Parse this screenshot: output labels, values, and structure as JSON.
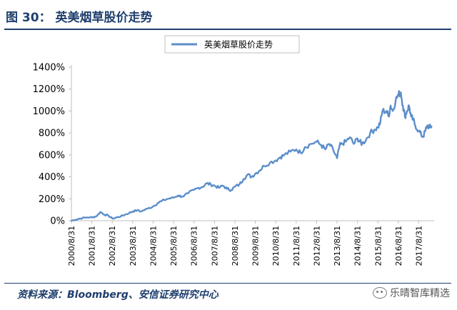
{
  "figure_title": "图 30： 英美烟草股价走势",
  "source": "资料来源：Bloomberg、安信证券研究中心",
  "watermark": "乐晴智库精选",
  "colors": {
    "line": "#5b8ecb",
    "title": "#1f3f6e",
    "axis": "#bfbfbf"
  },
  "chart_data": {
    "type": "line",
    "title": "",
    "xlabel": "",
    "ylabel": "",
    "legend": {
      "position": "top-center"
    },
    "grid": false,
    "ylim": [
      0,
      1400
    ],
    "y_ticks": [
      0,
      200,
      400,
      600,
      800,
      1000,
      1200,
      1400
    ],
    "y_tick_labels": [
      "0%",
      "200%",
      "400%",
      "600%",
      "800%",
      "1000%",
      "1200%",
      "1400%"
    ],
    "x_ticks": [
      "2000/8/31",
      "2001/8/31",
      "2002/8/31",
      "2003/8/31",
      "2004/8/31",
      "2005/8/31",
      "2006/8/31",
      "2007/8/31",
      "2008/8/31",
      "2009/8/31",
      "2010/8/31",
      "2011/8/31",
      "2012/8/31",
      "2013/8/31",
      "2014/8/31",
      "2015/8/31",
      "2016/8/31",
      "2017/8/31"
    ],
    "series": [
      {
        "name": "英美烟草股价走势",
        "x": [
          2000.58,
          2000.8,
          2001.0,
          2001.3,
          2001.58,
          2001.8,
          2002.0,
          2002.2,
          2002.4,
          2002.58,
          2002.8,
          2003.0,
          2003.2,
          2003.4,
          2003.58,
          2003.8,
          2004.0,
          2004.3,
          2004.58,
          2004.8,
          2005.0,
          2005.3,
          2005.58,
          2005.8,
          2006.0,
          2006.3,
          2006.58,
          2006.8,
          2007.0,
          2007.2,
          2007.4,
          2007.58,
          2007.8,
          2008.0,
          2008.2,
          2008.4,
          2008.58,
          2008.8,
          2009.0,
          2009.2,
          2009.4,
          2009.58,
          2009.8,
          2010.0,
          2010.3,
          2010.58,
          2010.8,
          2011.0,
          2011.3,
          2011.58,
          2011.8,
          2012.0,
          2012.3,
          2012.58,
          2012.8,
          2013.0,
          2013.2,
          2013.4,
          2013.58,
          2013.7,
          2013.8,
          2014.0,
          2014.2,
          2014.4,
          2014.58,
          2014.7,
          2014.8,
          2015.0,
          2015.2,
          2015.4,
          2015.58,
          2015.7,
          2015.8,
          2016.0,
          2016.1,
          2016.2,
          2016.3,
          2016.45,
          2016.58,
          2016.7,
          2016.8,
          2016.9,
          2017.0,
          2017.1,
          2017.2,
          2017.3,
          2017.4,
          2017.58,
          2017.7,
          2017.8,
          2017.9,
          2018.0,
          2018.1,
          2018.2
        ],
        "values": [
          0,
          10,
          20,
          30,
          30,
          40,
          80,
          55,
          45,
          20,
          30,
          40,
          55,
          70,
          85,
          95,
          85,
          110,
          130,
          160,
          180,
          200,
          210,
          230,
          220,
          250,
          280,
          300,
          310,
          340,
          330,
          320,
          300,
          320,
          290,
          280,
          310,
          330,
          380,
          420,
          400,
          430,
          460,
          500,
          530,
          550,
          580,
          600,
          630,
          650,
          620,
          670,
          700,
          720,
          690,
          650,
          700,
          640,
          570,
          680,
          700,
          720,
          760,
          700,
          750,
          720,
          700,
          740,
          800,
          830,
          850,
          900,
          1000,
          1000,
          950,
          1050,
          1000,
          1100,
          1150,
          1170,
          1050,
          950,
          1000,
          1050,
          950,
          920,
          870,
          820,
          780,
          770,
          820,
          870,
          850,
          860
        ]
      }
    ]
  }
}
